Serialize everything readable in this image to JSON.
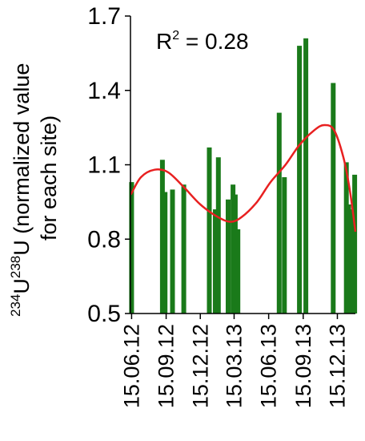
{
  "chart_data": {
    "type": "bar",
    "annotation": {
      "prefix": "R",
      "superscript": "2",
      "suffix": " = 0.28"
    },
    "ylabel": {
      "sup1": "234",
      "base1": "U",
      "sup2": "238",
      "base2": "U",
      "rest1": " (normalized value",
      "line2": "for each site)"
    },
    "ylim": [
      0.5,
      1.7
    ],
    "yticks": [
      "0.5",
      "0.8",
      "1.1",
      "1.4",
      "1.7"
    ],
    "xticks": [
      "15.06.12",
      "15.09.12",
      "15.12.12",
      "15.03.13",
      "15.06.13",
      "15.09.13",
      "15.12.13"
    ],
    "xlim": [
      "2012-06-12",
      "2014-02-01"
    ],
    "grid": false,
    "series": [
      {
        "type": "bar",
        "color": "#1a7a1a",
        "points": [
          {
            "x": "2012-06-15",
            "y": 1.03
          },
          {
            "x": "2012-09-05",
            "y": 1.12
          },
          {
            "x": "2012-09-12",
            "y": 0.99
          },
          {
            "x": "2012-10-02",
            "y": 1.0
          },
          {
            "x": "2012-11-01",
            "y": 1.02
          },
          {
            "x": "2013-01-08",
            "y": 1.17
          },
          {
            "x": "2013-01-24",
            "y": 0.92
          },
          {
            "x": "2013-02-01",
            "y": 1.13
          },
          {
            "x": "2013-02-27",
            "y": 0.96
          },
          {
            "x": "2013-03-12",
            "y": 1.02
          },
          {
            "x": "2013-03-18",
            "y": 0.98
          },
          {
            "x": "2013-03-25",
            "y": 0.84
          },
          {
            "x": "2013-07-13",
            "y": 1.31
          },
          {
            "x": "2013-07-27",
            "y": 1.05
          },
          {
            "x": "2013-09-05",
            "y": 1.58
          },
          {
            "x": "2013-09-22",
            "y": 1.61
          },
          {
            "x": "2013-12-04",
            "y": 1.43
          },
          {
            "x": "2014-01-08",
            "y": 1.11
          },
          {
            "x": "2014-01-14",
            "y": 0.94
          },
          {
            "x": "2014-01-20",
            "y": 0.92
          },
          {
            "x": "2014-01-30",
            "y": 1.06
          }
        ]
      },
      {
        "type": "line",
        "color": "#e82020",
        "points": [
          {
            "x": "2012-06-13",
            "y": 0.98
          },
          {
            "x": "2012-07-10",
            "y": 1.05
          },
          {
            "x": "2012-08-15",
            "y": 1.08
          },
          {
            "x": "2012-09-20",
            "y": 1.07
          },
          {
            "x": "2012-11-01",
            "y": 1.01
          },
          {
            "x": "2012-12-15",
            "y": 0.94
          },
          {
            "x": "2013-01-30",
            "y": 0.89
          },
          {
            "x": "2013-03-06",
            "y": 0.87
          },
          {
            "x": "2013-04-05",
            "y": 0.89
          },
          {
            "x": "2013-05-15",
            "y": 0.95
          },
          {
            "x": "2013-06-20",
            "y": 1.03
          },
          {
            "x": "2013-07-30",
            "y": 1.1
          },
          {
            "x": "2013-09-05",
            "y": 1.18
          },
          {
            "x": "2013-10-15",
            "y": 1.24
          },
          {
            "x": "2013-11-10",
            "y": 1.26
          },
          {
            "x": "2013-12-06",
            "y": 1.24
          },
          {
            "x": "2013-12-31",
            "y": 1.13
          },
          {
            "x": "2014-01-18",
            "y": 0.99
          },
          {
            "x": "2014-02-01",
            "y": 0.83
          }
        ]
      }
    ]
  }
}
